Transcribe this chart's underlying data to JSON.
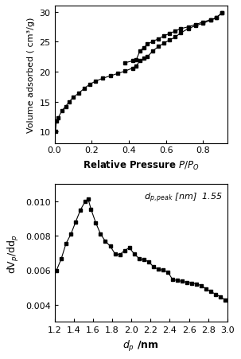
{
  "plot1": {
    "ylabel": "Volume adsorbed ( cm³/g)",
    "xlabel_normal": "Relative Pressure ",
    "xlabel_italic": "$P/P_O$",
    "ylim": [
      8,
      31
    ],
    "xlim": [
      0.0,
      0.93
    ],
    "yticks": [
      10,
      15,
      20,
      25,
      30
    ],
    "xticks": [
      0.0,
      0.2,
      0.4,
      0.6,
      0.8
    ],
    "adsorption_x": [
      0.005,
      0.01,
      0.02,
      0.04,
      0.06,
      0.08,
      0.1,
      0.13,
      0.16,
      0.19,
      0.22,
      0.26,
      0.3,
      0.34,
      0.38,
      0.42,
      0.44,
      0.46,
      0.48,
      0.5,
      0.53,
      0.56,
      0.59,
      0.62,
      0.65,
      0.68,
      0.72,
      0.76,
      0.8,
      0.84,
      0.87,
      0.9
    ],
    "adsorption_y": [
      10.0,
      11.8,
      12.3,
      13.5,
      14.2,
      15.0,
      15.7,
      16.4,
      17.2,
      17.9,
      18.4,
      18.9,
      19.3,
      19.7,
      20.1,
      20.6,
      21.0,
      21.8,
      22.2,
      22.5,
      23.5,
      24.2,
      24.8,
      25.3,
      25.8,
      26.5,
      27.2,
      27.7,
      28.1,
      28.6,
      29.0,
      29.8
    ],
    "desorption_x": [
      0.9,
      0.87,
      0.84,
      0.8,
      0.76,
      0.72,
      0.68,
      0.65,
      0.62,
      0.59,
      0.56,
      0.53,
      0.5,
      0.48,
      0.46,
      0.44,
      0.42,
      0.38
    ],
    "desorption_y": [
      29.8,
      29.0,
      28.7,
      28.3,
      27.9,
      27.5,
      27.2,
      26.8,
      26.4,
      26.0,
      25.5,
      25.1,
      24.6,
      24.0,
      23.5,
      22.0,
      21.8,
      21.5
    ]
  },
  "plot2": {
    "ylabel": "d$V_p$/dd$_p$",
    "xlabel": "$d_p$ /nm",
    "xlim": [
      1.2,
      3.0
    ],
    "ylim": [
      0.003,
      0.011
    ],
    "yticks": [
      0.004,
      0.006,
      0.008,
      0.01
    ],
    "xticks": [
      1.2,
      1.4,
      1.6,
      1.8,
      2.0,
      2.2,
      2.4,
      2.6,
      2.8,
      3.0
    ],
    "x": [
      1.22,
      1.27,
      1.32,
      1.37,
      1.42,
      1.47,
      1.52,
      1.55,
      1.58,
      1.63,
      1.68,
      1.73,
      1.78,
      1.83,
      1.88,
      1.93,
      1.98,
      2.03,
      2.08,
      2.13,
      2.18,
      2.23,
      2.28,
      2.33,
      2.38,
      2.43,
      2.48,
      2.53,
      2.58,
      2.63,
      2.68,
      2.73,
      2.78,
      2.83,
      2.88,
      2.93,
      2.98
    ],
    "y": [
      0.00598,
      0.00665,
      0.00755,
      0.00808,
      0.0088,
      0.0095,
      0.01,
      0.01015,
      0.00955,
      0.00875,
      0.0081,
      0.00768,
      0.0074,
      0.00695,
      0.0069,
      0.00715,
      0.0073,
      0.00695,
      0.00668,
      0.0066,
      0.0065,
      0.0062,
      0.00605,
      0.006,
      0.0059,
      0.00545,
      0.0054,
      0.00535,
      0.0053,
      0.00525,
      0.0052,
      0.0051,
      0.0049,
      0.00475,
      0.0046,
      0.00445,
      0.00425
    ]
  }
}
